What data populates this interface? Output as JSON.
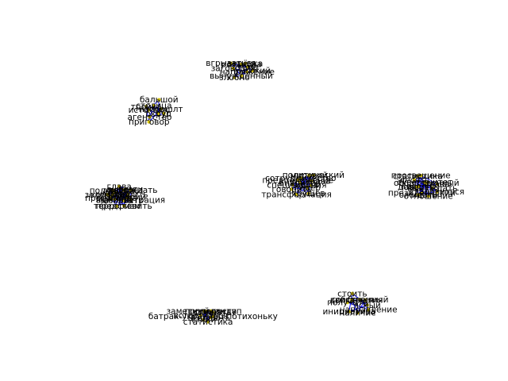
{
  "colors": {
    "edge": "#0000ee",
    "node": "#d4c20a",
    "label": "#000000"
  },
  "clusters": [
    {
      "name": "cluster-1",
      "nodes": [
        "высокий",
        "напряжение",
        "вынужденный",
        "злобно",
        "заговорик",
        "вгрызаться",
        "розанова",
        "верёвка",
        "тема"
      ]
    },
    {
      "name": "cluster-2",
      "nodes": [
        "суд",
        "округ",
        "приговор",
        "агентство",
        "источник",
        "тройка",
        "столица",
        "бальшой",
        "напрошлт"
      ]
    },
    {
      "name": "cluster-3",
      "nodes": [
        "дмитрий",
        "администрация",
        "взорвать",
        "представить",
        "терроризм",
        "министр",
        "пропаганда",
        "зеленский",
        "конфликт",
        "колос",
        "подписчик",
        "глава",
        "кобзон",
        "вывезти",
        "утверждать",
        "говорить"
      ]
    },
    {
      "name": "cluster-4",
      "nodes": [
        "ирония",
        "лидер",
        "хрущёв",
        "трансформация",
        "говорить",
        "специалист",
        "аналитик",
        "предположение",
        "сотрудничество",
        "мировой",
        "политический",
        "держава"
      ]
    },
    {
      "name": "cluster-5",
      "nodes": [
        "вынуждать",
        "становиться",
        "отношение",
        "президентский",
        "ожидать",
        "заявить",
        "доверять",
        "десять",
        "статистика",
        "просвещение",
        "суверенитет",
        "общественный",
        "глава"
      ]
    },
    {
      "name": "cluster-6",
      "nodes": [
        "батрак-украинец.потихоньку",
        "взорвать",
        "статистика",
        "стихи",
        "встретиться",
        "заметный.соступ",
        "стихи",
        "пропаганда",
        "слушать"
      ]
    },
    {
      "name": "cluster-7",
      "nodes": [
        "ясный",
        "направление",
        "наличие",
        "инициатива",
        "получать",
        "двигаться",
        "стоить",
        "собственный",
        "бельгия"
      ]
    }
  ]
}
